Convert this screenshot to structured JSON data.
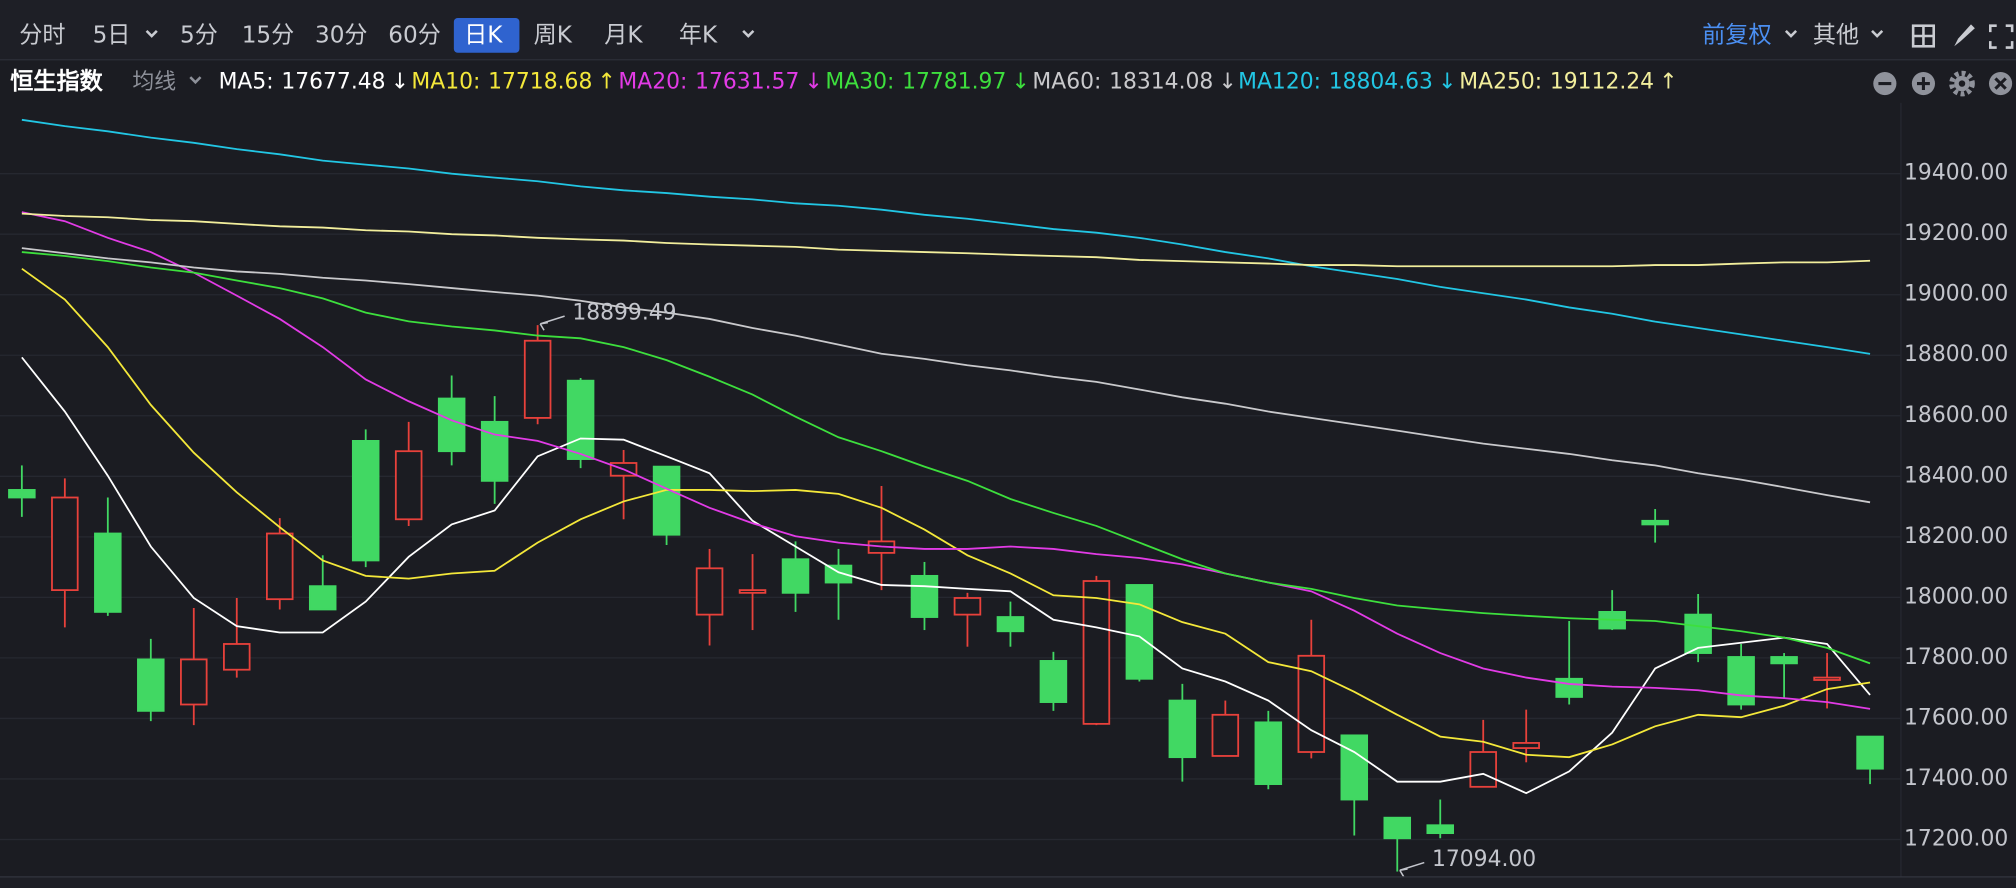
{
  "toolbar": {
    "tabs": [
      "分时",
      "5日",
      "5分",
      "15分",
      "30分",
      "60分",
      "日K",
      "周K",
      "月K",
      "年K"
    ],
    "adjust": "前复权",
    "more": "其他"
  },
  "header": {
    "symbol": "恒生指数",
    "indicator": "均线"
  },
  "chart_data": {
    "type": "candlestick",
    "up_color": "#e8413b",
    "down_color": "#41d863",
    "up_hollow": true,
    "open": [
      18355,
      18024,
      18211,
      17795,
      17646,
      17761,
      17994,
      18037,
      18517,
      18258,
      18657,
      18580,
      18593,
      18716,
      18402,
      18432,
      17943,
      18015,
      18126,
      18105,
      18147,
      18071,
      17943,
      17935,
      17790,
      17582,
      18041,
      17659,
      17476,
      17587,
      17489,
      17544,
      17272,
      17247,
      17374,
      17502,
      17731,
      17952,
      18253,
      17943,
      17803,
      17803,
      17727,
      17540
    ],
    "high": [
      18436,
      18393,
      18330,
      17863,
      17965,
      17998,
      18262,
      18139,
      18555,
      18580,
      18733,
      18665,
      18899.49,
      18725,
      18487,
      18432,
      18160,
      18143,
      18185,
      18160,
      18368,
      18117,
      18015,
      17986,
      17820,
      18071,
      18041,
      17714,
      17659,
      17625,
      17926,
      17544,
      17272,
      17332,
      17595,
      17629,
      17922,
      18024,
      18292,
      18011,
      17846,
      17816,
      17816,
      17540
    ],
    "low": [
      18266,
      17901,
      17939,
      17591,
      17578,
      17735,
      17960,
      17960,
      18100,
      18236,
      18436,
      18309,
      18572,
      18427,
      18258,
      18173,
      17841,
      17892,
      17952,
      17926,
      18024,
      17892,
      17837,
      17837,
      17625,
      17578,
      17722,
      17391,
      17476,
      17366,
      17468,
      17213,
      17094,
      17204,
      17374,
      17455,
      17646,
      17892,
      18181,
      17786,
      17629,
      17667,
      17633,
      17383
    ],
    "close": [
      18330,
      18330,
      17952,
      17625,
      17795,
      17846,
      18211,
      17960,
      18122,
      18483,
      18483,
      18385,
      18848,
      18457,
      18444,
      18207,
      18096,
      18024,
      18015,
      18049,
      18185,
      17935,
      17998,
      17888,
      17654,
      18054,
      17731,
      17472,
      17612,
      17383,
      17807,
      17332,
      17204,
      17221,
      17489,
      17519,
      17671,
      17897,
      18241,
      17816,
      17646,
      17782,
      17735,
      17434
    ],
    "legend_separator": ":",
    "series": [
      {
        "name": "MA5",
        "color": "#ffffff",
        "trend": "↓",
        "values": [
          18793,
          18614,
          18402,
          18168,
          17998,
          17905,
          17884,
          17884,
          17986,
          18134,
          18241,
          18287,
          18466,
          18525,
          18521,
          18466,
          18410,
          18253,
          18168,
          18083,
          18041,
          18037,
          18028,
          18020,
          17926,
          17901,
          17871,
          17765,
          17722,
          17659,
          17561,
          17489,
          17391,
          17391,
          17417,
          17353,
          17425,
          17553,
          17765,
          17833,
          17850,
          17867,
          17846,
          17677.48
        ]
      },
      {
        "name": "MA10",
        "color": "#f4e83a",
        "trend": "↑",
        "values": [
          19086,
          18984,
          18827,
          18636,
          18478,
          18347,
          18232,
          18122,
          18071,
          18062,
          18079,
          18088,
          18181,
          18258,
          18317,
          18355,
          18355,
          18351,
          18355,
          18342,
          18296,
          18224,
          18139,
          18079,
          18007,
          17998,
          17977,
          17918,
          17880,
          17786,
          17756,
          17688,
          17612,
          17540,
          17523,
          17480,
          17472,
          17514,
          17574,
          17612,
          17604,
          17642,
          17697,
          17718.68
        ]
      },
      {
        "name": "MA20",
        "color": "#e23be6",
        "trend": "↓",
        "values": [
          19273,
          19243,
          19188,
          19141,
          19073,
          18997,
          18920,
          18827,
          18720,
          18648,
          18585,
          18538,
          18517,
          18474,
          18423,
          18359,
          18296,
          18245,
          18202,
          18181,
          18168,
          18160,
          18160,
          18168,
          18160,
          18143,
          18130,
          18109,
          18079,
          18049,
          18020,
          17956,
          17880,
          17816,
          17765,
          17735,
          17714,
          17705,
          17701,
          17693,
          17676,
          17667,
          17654,
          17631.57
        ]
      },
      {
        "name": "MA30",
        "color": "#3ddf3d",
        "trend": "↓",
        "values": [
          19141,
          19128,
          19111,
          19090,
          19073,
          19047,
          19022,
          18988,
          18941,
          18912,
          18895,
          18882,
          18865,
          18856,
          18827,
          18784,
          18729,
          18670,
          18597,
          18529,
          18483,
          18432,
          18385,
          18325,
          18279,
          18236,
          18181,
          18126,
          18079,
          18049,
          18028,
          17998,
          17973,
          17960,
          17948,
          17939,
          17931,
          17926,
          17922,
          17905,
          17888,
          17867,
          17833,
          17781.97
        ]
      },
      {
        "name": "MA60",
        "color": "#c9c9cc",
        "trend": "↓",
        "values": [
          19154,
          19137,
          19120,
          19107,
          19090,
          19077,
          19069,
          19056,
          19047,
          19035,
          19022,
          19009,
          18997,
          18980,
          18958,
          18941,
          18920,
          18890,
          18865,
          18835,
          18805,
          18788,
          18767,
          18750,
          18729,
          18712,
          18687,
          18661,
          18640,
          18614,
          18593,
          18572,
          18551,
          18529,
          18508,
          18491,
          18474,
          18453,
          18436,
          18410,
          18389,
          18364,
          18338,
          18314.08
        ]
      },
      {
        "name": "MA120",
        "color": "#22c6e4",
        "trend": "↓",
        "values": [
          19578,
          19557,
          19540,
          19519,
          19502,
          19481,
          19464,
          19443,
          19430,
          19417,
          19400,
          19387,
          19375,
          19358,
          19345,
          19336,
          19324,
          19315,
          19302,
          19294,
          19281,
          19264,
          19251,
          19234,
          19217,
          19205,
          19188,
          19166,
          19141,
          19120,
          19094,
          19073,
          19052,
          19026,
          19005,
          18984,
          18958,
          18937,
          18911,
          18890,
          18869,
          18848,
          18827,
          18804.63
        ]
      },
      {
        "name": "MA250",
        "color": "#f2ee9c",
        "trend": "↑",
        "values": [
          19268,
          19260,
          19256,
          19247,
          19243,
          19234,
          19226,
          19222,
          19213,
          19209,
          19200,
          19196,
          19188,
          19183,
          19179,
          19171,
          19166,
          19162,
          19158,
          19149,
          19145,
          19141,
          19137,
          19132,
          19128,
          19124,
          19115,
          19111,
          19107,
          19103,
          19098,
          19098,
          19094,
          19094,
          19094,
          19094,
          19094,
          19094,
          19098,
          19098,
          19103,
          19107,
          19107,
          19112.24
        ]
      }
    ],
    "ylim": [
      17085,
      19634
    ],
    "yticks": [
      {
        "value": 17200,
        "label": "17200.00"
      },
      {
        "value": 17400,
        "label": "17400.00"
      },
      {
        "value": 17600,
        "label": "17600.00"
      },
      {
        "value": 17800,
        "label": "17800.00"
      },
      {
        "value": 18000,
        "label": "18000.00"
      },
      {
        "value": 18200,
        "label": "18200.00"
      },
      {
        "value": 18400,
        "label": "18400.00"
      },
      {
        "value": 18600,
        "label": "18600.00"
      },
      {
        "value": 18800,
        "label": "18800.00"
      },
      {
        "value": 19000,
        "label": "19000.00"
      },
      {
        "value": 19200,
        "label": "19200.00"
      },
      {
        "value": 19400,
        "label": "19400.00"
      }
    ],
    "grid": true,
    "high_label": "18899.49",
    "low_label": "17094.00"
  }
}
